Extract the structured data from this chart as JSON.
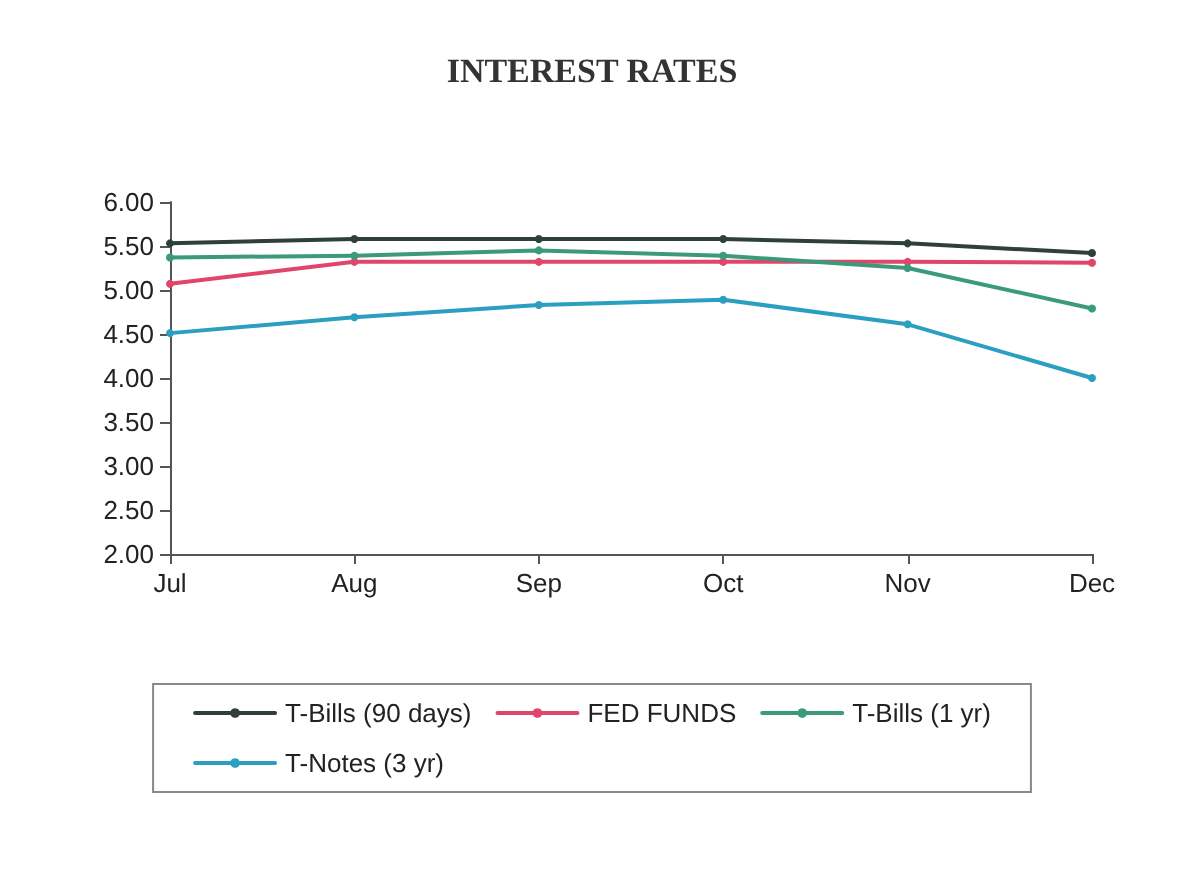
{
  "chart_data": {
    "type": "line",
    "title": "INTEREST RATES",
    "categories": [
      "Jul",
      "Aug",
      "Sep",
      "Oct",
      "Nov",
      "Dec"
    ],
    "series": [
      {
        "name": "T-Bills (90 days)",
        "color": "#2f3f3a",
        "values": [
          5.53,
          5.58,
          5.58,
          5.58,
          5.53,
          5.42
        ]
      },
      {
        "name": "FED FUNDS",
        "color": "#e0456a",
        "values": [
          5.07,
          5.32,
          5.32,
          5.32,
          5.32,
          5.31
        ]
      },
      {
        "name": "T-Bills (1 yr)",
        "color": "#3a9a7a",
        "values": [
          5.37,
          5.39,
          5.45,
          5.39,
          5.25,
          4.79
        ]
      },
      {
        "name": "T-Notes (3 yr)",
        "color": "#2a9fc0",
        "values": [
          4.51,
          4.69,
          4.83,
          4.89,
          4.61,
          4.0
        ]
      }
    ],
    "ylim": [
      2,
      6
    ],
    "yticks": [
      {
        "value": 2,
        "label": "2.00"
      },
      {
        "value": 2.5,
        "label": "2.50"
      },
      {
        "value": 3,
        "label": "3.00"
      },
      {
        "value": 3.5,
        "label": "3.50"
      },
      {
        "value": 4,
        "label": "4.00"
      },
      {
        "value": 4.5,
        "label": "4.50"
      },
      {
        "value": 5,
        "label": "5.00"
      },
      {
        "value": 5.5,
        "label": "5.50"
      },
      {
        "value": 6,
        "label": "6.00"
      }
    ],
    "grid": false,
    "legend": "bottom",
    "marker": "circle",
    "line_style": "solid"
  }
}
